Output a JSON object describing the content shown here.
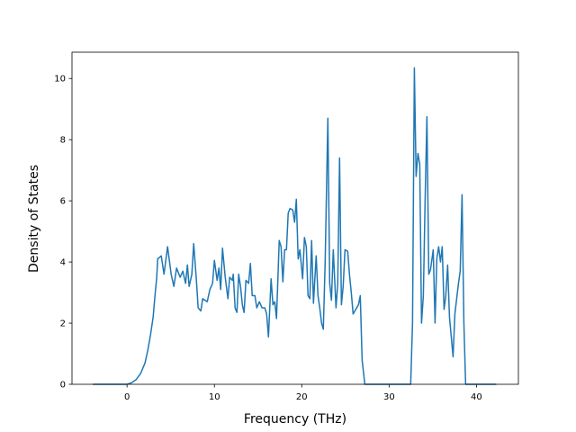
{
  "chart_data": {
    "type": "line",
    "xlabel": "Frequency (THz)",
    "ylabel": "Density of States",
    "xlim": [
      -6.3,
      44.8
    ],
    "ylim": [
      0,
      10.86
    ],
    "xticks": [
      0,
      10,
      20,
      30,
      40
    ],
    "yticks": [
      0,
      2,
      4,
      6,
      8,
      10
    ],
    "grid": false,
    "series": [
      {
        "color": "#1f77b4",
        "x": [
          -3.92,
          0,
          0.52,
          1.03,
          1.55,
          2.06,
          2.37,
          2.68,
          2.99,
          3.2,
          3.4,
          3.51,
          3.92,
          4.23,
          4.64,
          5.05,
          5.36,
          5.67,
          6.08,
          6.39,
          6.7,
          6.91,
          7.11,
          7.42,
          7.63,
          7.94,
          8.14,
          8.45,
          8.66,
          9.18,
          9.48,
          9.79,
          10.0,
          10.31,
          10.52,
          10.72,
          10.93,
          11.24,
          11.55,
          11.75,
          12.06,
          12.16,
          12.37,
          12.58,
          12.78,
          12.99,
          13.2,
          13.4,
          13.61,
          13.92,
          14.12,
          14.33,
          14.64,
          14.85,
          15.15,
          15.46,
          15.77,
          15.98,
          16.19,
          16.49,
          16.7,
          16.91,
          17.11,
          17.42,
          17.63,
          17.84,
          18.04,
          18.25,
          18.45,
          18.66,
          18.97,
          19.18,
          19.38,
          19.59,
          19.79,
          20.1,
          20.31,
          20.52,
          20.72,
          20.93,
          21.13,
          21.34,
          21.65,
          21.86,
          22.06,
          22.27,
          22.47,
          22.68,
          22.99,
          23.2,
          23.4,
          23.61,
          23.92,
          24.12,
          24.33,
          24.54,
          24.74,
          24.95,
          25.26,
          25.46,
          25.67,
          25.88,
          26.19,
          26.49,
          26.7,
          26.91,
          27.22,
          32.47,
          32.68,
          32.89,
          33.09,
          33.3,
          33.51,
          33.71,
          33.92,
          34.12,
          34.33,
          34.54,
          34.74,
          35.05,
          35.26,
          35.46,
          35.67,
          35.88,
          36.08,
          36.29,
          36.49,
          36.7,
          36.91,
          37.32,
          37.53,
          37.94,
          38.14,
          38.35,
          38.56,
          38.76,
          42.27
        ],
        "values": [
          0,
          0,
          0.05,
          0.15,
          0.35,
          0.7,
          1.1,
          1.6,
          2.2,
          2.9,
          3.5,
          4.1,
          4.2,
          3.6,
          4.5,
          3.6,
          3.2,
          3.8,
          3.5,
          3.7,
          3.3,
          3.9,
          3.2,
          3.6,
          4.6,
          3.4,
          2.5,
          2.4,
          2.8,
          2.7,
          3.1,
          3.3,
          4.05,
          3.4,
          3.8,
          3.1,
          4.45,
          3.5,
          2.8,
          3.5,
          3.4,
          3.6,
          2.5,
          2.35,
          3.6,
          3.2,
          2.6,
          2.35,
          3.4,
          3.3,
          3.95,
          2.9,
          2.9,
          2.5,
          2.7,
          2.5,
          2.5,
          2.3,
          1.55,
          3.45,
          2.6,
          2.7,
          2.15,
          4.7,
          4.5,
          3.35,
          4.4,
          4.4,
          5.6,
          5.75,
          5.7,
          5.3,
          6.05,
          4.1,
          4.4,
          3.45,
          4.8,
          4.5,
          2.9,
          2.8,
          4.7,
          2.65,
          4.2,
          2.9,
          2.5,
          2.0,
          1.8,
          4.0,
          8.7,
          3.3,
          2.75,
          4.4,
          2.5,
          3.3,
          7.4,
          2.6,
          3.2,
          4.4,
          4.35,
          3.6,
          3.0,
          2.3,
          2.45,
          2.6,
          2.9,
          0.8,
          0,
          0,
          2.0,
          10.35,
          6.8,
          7.55,
          7.2,
          2.0,
          2.9,
          6.0,
          8.75,
          3.6,
          3.75,
          4.4,
          2.0,
          4.1,
          4.5,
          4.0,
          4.5,
          2.45,
          2.9,
          3.9,
          2.2,
          0.9,
          2.3,
          3.3,
          3.7,
          6.2,
          2.0,
          0,
          0
        ]
      }
    ]
  }
}
